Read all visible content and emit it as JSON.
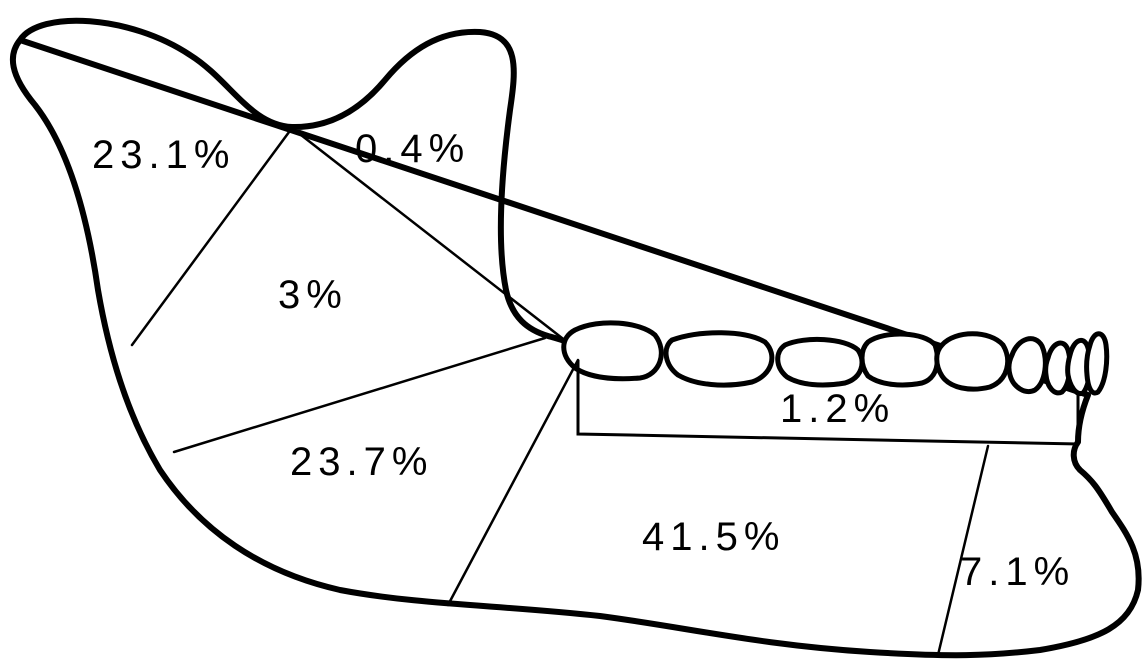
{
  "regions": {
    "condyle": "23.1%",
    "coronoid": "0.4%",
    "ramus": "3%",
    "angle": "23.7%",
    "body": "41.5%",
    "alveolar": "1.2%",
    "symphysis": "7.1%"
  },
  "colors": {
    "line": "#000000",
    "background": "#ffffff"
  }
}
